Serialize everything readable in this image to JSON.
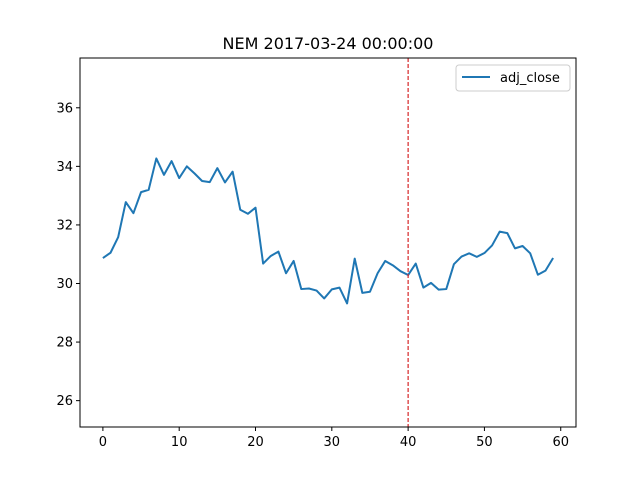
{
  "chart_data": {
    "type": "line",
    "title": "NEM 2017-03-24 00:00:00",
    "xlabel": "",
    "ylabel": "",
    "xlim": [
      -3,
      62
    ],
    "ylim": [
      25.1,
      37.7
    ],
    "xticks": [
      0,
      10,
      20,
      30,
      40,
      50,
      60
    ],
    "yticks": [
      26,
      28,
      30,
      32,
      34,
      36
    ],
    "grid": false,
    "legend": "top-right",
    "series": [
      {
        "name": "adj_close",
        "color": "#1f77b4",
        "x": [
          0,
          1,
          2,
          3,
          4,
          5,
          6,
          7,
          8,
          9,
          10,
          11,
          12,
          13,
          14,
          15,
          16,
          17,
          18,
          19,
          20,
          21,
          22,
          23,
          24,
          25,
          26,
          27,
          28,
          29,
          30,
          31,
          32,
          33,
          34,
          35,
          36,
          37,
          38,
          39,
          40,
          41,
          42,
          43,
          44,
          45,
          46,
          47,
          48,
          49,
          50,
          51,
          52,
          53,
          54,
          55,
          56,
          57,
          58,
          59
        ],
        "values": [
          30.87,
          31.05,
          31.58,
          32.78,
          32.4,
          33.12,
          33.2,
          34.27,
          33.71,
          34.18,
          33.6,
          34.0,
          33.76,
          33.5,
          33.46,
          33.94,
          33.45,
          33.82,
          32.52,
          32.38,
          32.59,
          30.68,
          30.94,
          31.09,
          30.35,
          30.77,
          29.81,
          29.83,
          29.76,
          29.49,
          29.8,
          29.86,
          29.32,
          30.85,
          29.68,
          29.72,
          30.35,
          30.77,
          30.62,
          30.42,
          30.29,
          30.68,
          29.86,
          30.02,
          29.79,
          29.81,
          30.66,
          30.92,
          31.03,
          30.91,
          31.04,
          31.3,
          31.77,
          31.72,
          31.2,
          31.28,
          31.03,
          30.3,
          30.44,
          30.87
        ]
      }
    ],
    "annotations": [
      {
        "type": "vline",
        "x": 40,
        "color": "#d62728",
        "style": "dashed"
      }
    ]
  }
}
